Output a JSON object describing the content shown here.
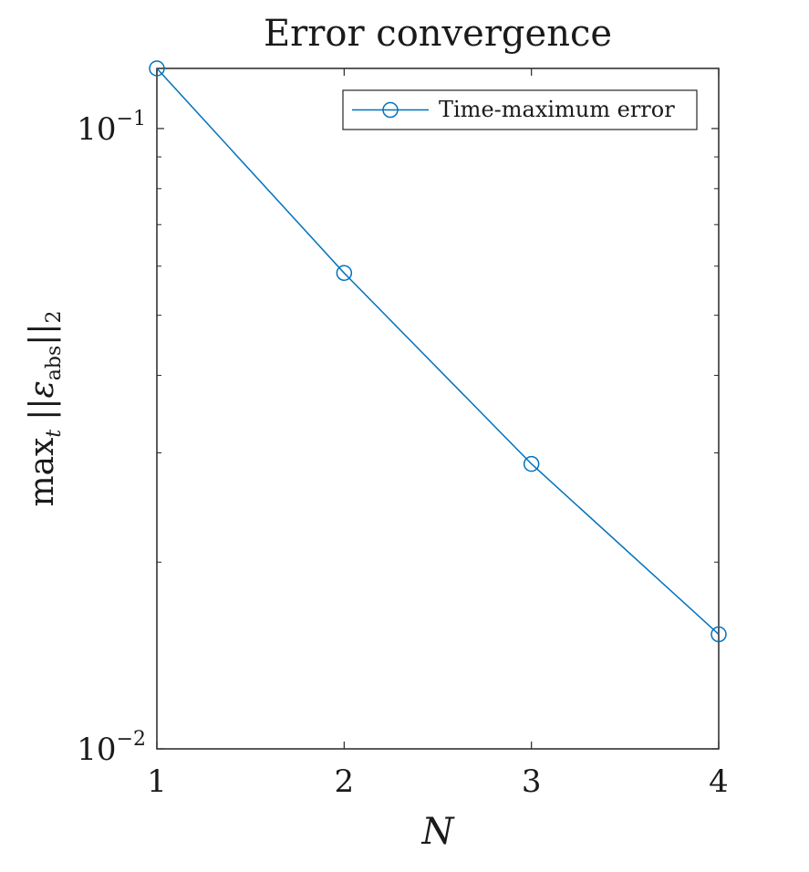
{
  "chart_data": {
    "type": "line",
    "title": "Error convergence",
    "xlabel": "N",
    "ylabel": {
      "prefix": "max",
      "subscript": "t",
      "norm_open": "||",
      "symbol": "ε",
      "symbol_subscript": "abs",
      "norm_close": "||",
      "norm_subscript": "2"
    },
    "x": [
      1,
      2,
      3,
      4
    ],
    "xlim": [
      1,
      4
    ],
    "x_ticks": [
      "1",
      "2",
      "3",
      "4"
    ],
    "ylim": [
      0.01,
      0.125
    ],
    "y_scale": "log",
    "y_ticks": [
      {
        "value": 0.1,
        "base": "10",
        "exponent": "−1"
      },
      {
        "value": 0.01,
        "base": "10",
        "exponent": "−2"
      }
    ],
    "series": [
      {
        "name": "Time-maximum error",
        "values": [
          0.125,
          0.0585,
          0.0288,
          0.0153
        ],
        "color": "#0072BD",
        "marker": "circle"
      }
    ],
    "legend_position": "top-right",
    "grid": false,
    "box": true
  }
}
